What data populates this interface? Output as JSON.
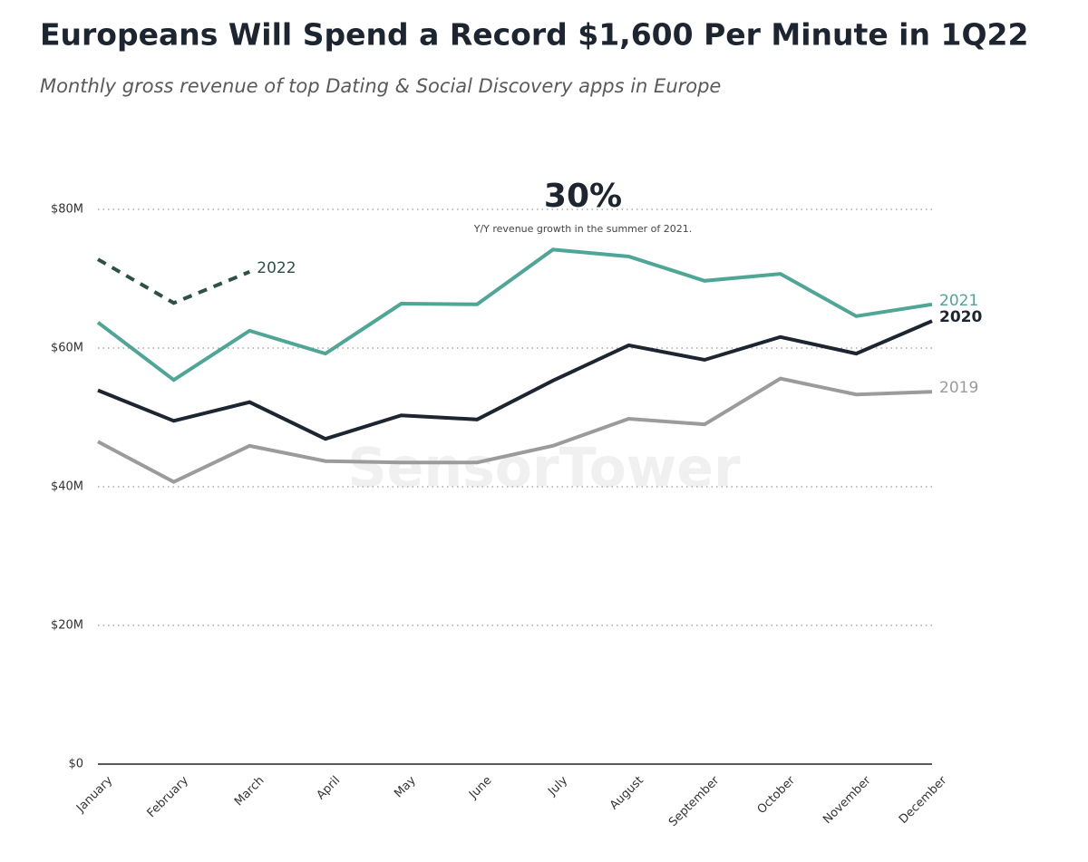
{
  "chart_data": {
    "type": "line",
    "title": "Europeans Will Spend a Record $1,600 Per Minute in 1Q22",
    "subtitle": "Monthly gross revenue of top Dating & Social Discovery apps in Europe",
    "annotation": {
      "headline": "30%",
      "text": "Y/Y revenue growth in the summer of 2021."
    },
    "watermark": "SensorTower",
    "categories": [
      "January",
      "February",
      "March",
      "April",
      "May",
      "June",
      "July",
      "August",
      "September",
      "October",
      "November",
      "December"
    ],
    "series": [
      {
        "name": "2019",
        "color": "#9b9b9b",
        "dashed": false,
        "values": [
          46.5,
          40.7,
          45.9,
          43.7,
          43.5,
          43.5,
          45.9,
          49.8,
          49.0,
          55.6,
          53.3,
          53.7
        ]
      },
      {
        "name": "2020",
        "color": "#1c2530",
        "dashed": false,
        "values": [
          53.9,
          49.5,
          52.2,
          46.9,
          50.3,
          49.7,
          55.3,
          60.4,
          58.3,
          61.6,
          59.2,
          63.9
        ]
      },
      {
        "name": "2021",
        "color": "#4fa596",
        "dashed": false,
        "values": [
          63.7,
          55.4,
          62.5,
          59.2,
          66.4,
          66.3,
          74.2,
          73.2,
          69.7,
          70.7,
          64.6,
          66.3
        ]
      },
      {
        "name": "2022",
        "color": "#2d5048",
        "dashed": true,
        "values": [
          72.8,
          66.5,
          71.0,
          null,
          null,
          null,
          null,
          null,
          null,
          null,
          null,
          null
        ]
      }
    ],
    "ylim": [
      0,
      80
    ],
    "yticks": [
      {
        "value": 0,
        "label": "$0"
      },
      {
        "value": 20,
        "label": "$20M"
      },
      {
        "value": 40,
        "label": "$40M"
      },
      {
        "value": 60,
        "label": "$60M"
      },
      {
        "value": 80,
        "label": "$80M"
      }
    ],
    "grid": true
  }
}
